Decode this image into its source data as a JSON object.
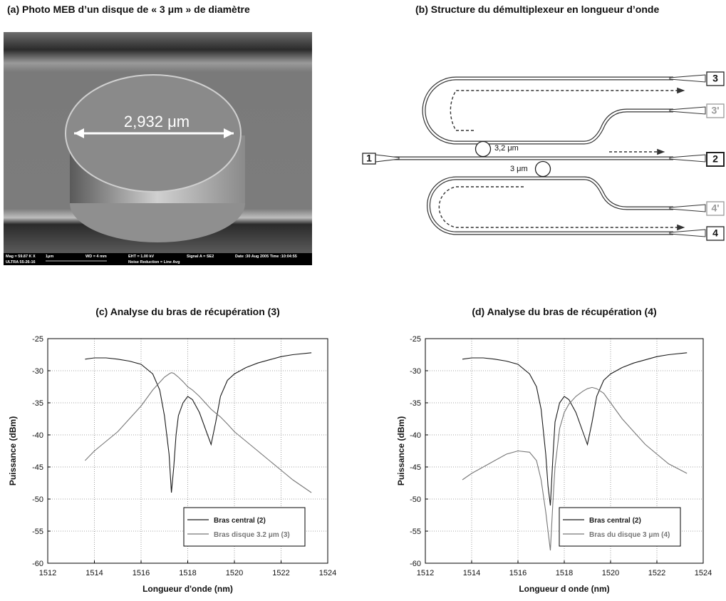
{
  "photo": {
    "title": "(a) Photo MEB d’un disque de « 3 μm » de diamètre",
    "measure": "2,932 μm",
    "info": {
      "mag": "Mag = 59.87 K X",
      "scale": "1μm",
      "wd": "WD =  4 mm",
      "eht": "EHT =  1.00 kV",
      "signal": "Signal A = SE2",
      "date": "Date :30 Aug 2005 Time :10:04:55",
      "instrument": "ULTRA 55-26-16",
      "noise": "Noise Reduction = Line Avg"
    }
  },
  "diagram": {
    "title": "(b) Structure du démultiplexeur en longueur d’onde",
    "ports": {
      "p1": "1",
      "p2": "2",
      "p3": "3",
      "p3b": "3'",
      "p4": "4",
      "p4b": "4'"
    },
    "rings": {
      "upper": "3,2 μm",
      "lower": "3 μm"
    }
  },
  "chart_data": [
    {
      "type": "line",
      "title": "(c) Analyse du bras de récupération (3)",
      "x_label": "Longueur d'onde (nm)",
      "y_label": "Puissance (dBm)",
      "x": [
        1513.6,
        1514,
        1514.5,
        1515,
        1515.5,
        1516,
        1516.5,
        1516.8,
        1517,
        1517.2,
        1517.3,
        1517.4,
        1517.5,
        1517.6,
        1517.8,
        1518,
        1518.2,
        1518.5,
        1518.8,
        1519,
        1519.2,
        1519.4,
        1519.7,
        1520,
        1520.5,
        1521,
        1521.5,
        1522,
        1522.5,
        1523.3
      ],
      "series": [
        {
          "name": "Bras central (2)",
          "color": "#1a1a1a",
          "values": [
            -28.2,
            -28,
            -28,
            -28.2,
            -28.5,
            -29,
            -30.5,
            -33,
            -37,
            -43,
            -49,
            -45,
            -40,
            -37,
            -35,
            -34,
            -34.5,
            -36.5,
            -39.5,
            -41.5,
            -38,
            -34,
            -31.5,
            -30.5,
            -29.5,
            -28.8,
            -28.3,
            -27.8,
            -27.5,
            -27.2
          ]
        },
        {
          "name": "Bras disque 3.2 μm (3)",
          "color": "#777777",
          "values": [
            -44,
            -42.5,
            -41,
            -39.5,
            -37.5,
            -35.5,
            -33,
            -31.8,
            -31,
            -30.5,
            -30.3,
            -30.4,
            -30.7,
            -31,
            -31.7,
            -32.5,
            -33,
            -34,
            -35.2,
            -36,
            -36.6,
            -37.2,
            -38.3,
            -39.5,
            -41,
            -42.5,
            -44,
            -45.5,
            -47,
            -49
          ]
        }
      ],
      "xlim": [
        1512,
        1524
      ],
      "ylim": [
        -60,
        -25
      ],
      "xticks": [
        1512,
        1514,
        1516,
        1518,
        1520,
        1522,
        1524
      ],
      "yticks": [
        -60,
        -55,
        -50,
        -45,
        -40,
        -35,
        -30,
        -25
      ],
      "grid": true,
      "legend": "lower-right"
    },
    {
      "type": "line",
      "title": "(d) Analyse du bras de récupération (4)",
      "x_label": "Longueur d onde (nm)",
      "y_label": "Puissance (dBm)",
      "x": [
        1513.6,
        1514,
        1514.5,
        1515,
        1515.5,
        1516,
        1516.5,
        1516.8,
        1517,
        1517.2,
        1517.3,
        1517.4,
        1517.5,
        1517.6,
        1517.8,
        1518,
        1518.2,
        1518.5,
        1518.8,
        1519,
        1519.2,
        1519.4,
        1519.7,
        1520,
        1520.5,
        1521,
        1521.5,
        1522,
        1522.5,
        1523.3
      ],
      "series": [
        {
          "name": "Bras central  (2)",
          "color": "#1a1a1a",
          "values": [
            -28.2,
            -28,
            -28,
            -28.2,
            -28.5,
            -29,
            -30.5,
            -32.5,
            -36,
            -43,
            -48,
            -51,
            -44,
            -38,
            -35,
            -34,
            -34.5,
            -36.5,
            -39.5,
            -41.5,
            -38,
            -34,
            -31.5,
            -30.5,
            -29.5,
            -28.8,
            -28.3,
            -27.8,
            -27.5,
            -27.2
          ]
        },
        {
          "name": "Bras du disque 3 μm (4)",
          "color": "#777777",
          "values": [
            -47,
            -46,
            -45,
            -44,
            -43,
            -42.5,
            -42.7,
            -44,
            -47,
            -52,
            -55,
            -58,
            -51,
            -45,
            -39,
            -36.5,
            -35.2,
            -34,
            -33.2,
            -32.8,
            -32.6,
            -32.8,
            -33.5,
            -35,
            -37.5,
            -39.5,
            -41.5,
            -43,
            -44.5,
            -46
          ]
        }
      ],
      "xlim": [
        1512,
        1524
      ],
      "ylim": [
        -60,
        -25
      ],
      "xticks": [
        1512,
        1514,
        1516,
        1518,
        1520,
        1522,
        1524
      ],
      "yticks": [
        -60,
        -55,
        -50,
        -45,
        -40,
        -35,
        -30,
        -25
      ],
      "grid": true,
      "legend": "lower-right"
    }
  ]
}
